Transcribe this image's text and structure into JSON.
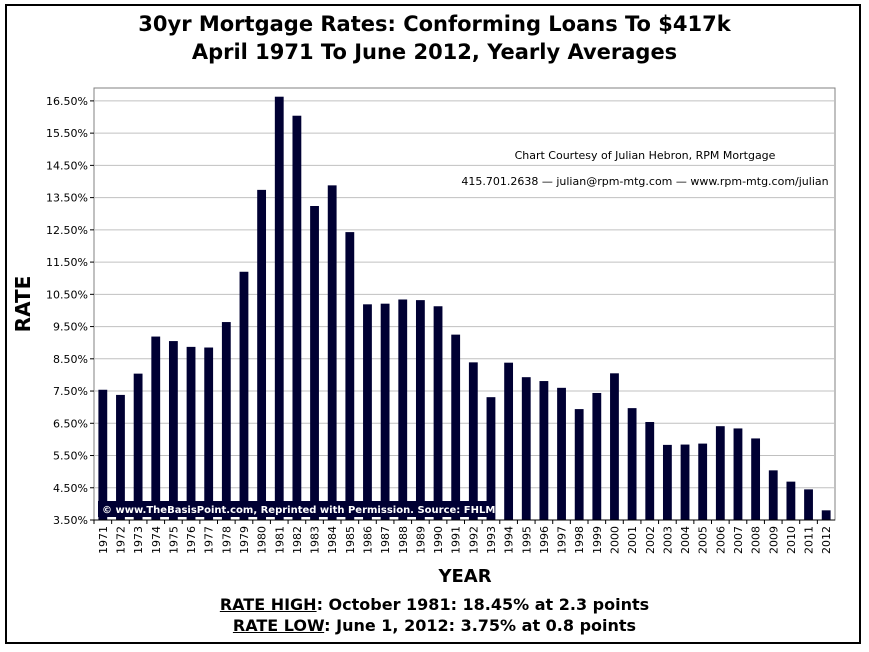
{
  "chart_data": {
    "type": "bar",
    "title": "30yr Mortgage Rates: Conforming Loans To $417k",
    "subtitle": "April 1971 To June 2012, Yearly Averages",
    "xlabel": "YEAR",
    "ylabel": "RATE",
    "ylim": [
      3.5,
      16.9
    ],
    "yticks": [
      "3.50%",
      "4.50%",
      "5.50%",
      "6.50%",
      "7.50%",
      "8.50%",
      "9.50%",
      "10.50%",
      "11.50%",
      "12.50%",
      "13.50%",
      "14.50%",
      "15.50%",
      "16.50%"
    ],
    "ytick_values": [
      3.5,
      4.5,
      5.5,
      6.5,
      7.5,
      8.5,
      9.5,
      10.5,
      11.5,
      12.5,
      13.5,
      14.5,
      15.5,
      16.5
    ],
    "grid": true,
    "bar_color": "#000033",
    "categories": [
      "1971",
      "1972",
      "1973",
      "1974",
      "1975",
      "1976",
      "1977",
      "1978",
      "1979",
      "1980",
      "1981",
      "1982",
      "1983",
      "1984",
      "1985",
      "1986",
      "1987",
      "1988",
      "1989",
      "1990",
      "1991",
      "1992",
      "1993",
      "1994",
      "1995",
      "1996",
      "1997",
      "1998",
      "1999",
      "2000",
      "2001",
      "2002",
      "2003",
      "2004",
      "2005",
      "2006",
      "2007",
      "2008",
      "2009",
      "2010",
      "2011",
      "2012"
    ],
    "values": [
      7.54,
      7.38,
      8.04,
      9.19,
      9.05,
      8.87,
      8.85,
      9.64,
      11.2,
      13.74,
      16.63,
      16.04,
      13.24,
      13.88,
      12.43,
      10.19,
      10.21,
      10.34,
      10.32,
      10.13,
      9.25,
      8.39,
      7.31,
      8.38,
      7.93,
      7.81,
      7.6,
      6.94,
      7.44,
      8.05,
      6.97,
      6.54,
      5.83,
      5.84,
      5.87,
      6.41,
      6.34,
      6.03,
      5.04,
      4.69,
      4.45,
      3.8
    ]
  },
  "annotations": {
    "credit_line1": "Chart Courtesy of Julian Hebron, RPM Mortgage",
    "credit_line2": "415.701.2638 — julian@rpm-mtg.com — www.rpm-mtg.com/julian",
    "copyright": "© www.TheBasisPoint.com, Reprinted with Permission. Source: FHLMC"
  },
  "footer": {
    "high_label": "RATE HIGH",
    "high_text": ": October 1981: 18.45% at 2.3 points",
    "low_label": "RATE LOW",
    "low_text": ": June 1, 2012: 3.75% at 0.8 points"
  }
}
